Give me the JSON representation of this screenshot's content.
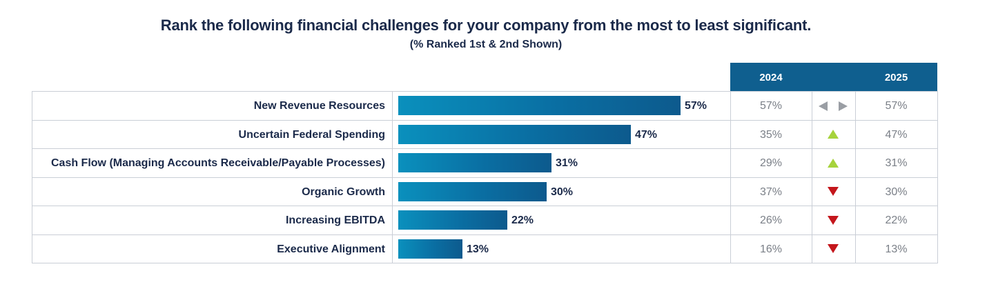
{
  "title": "Rank the following financial challenges for your company from the most to least significant.",
  "subtitle": "(% Ranked 1st & 2nd Shown)",
  "colors": {
    "header": "#0f5f8f",
    "up": "#a6d33c",
    "down": "#c4161c",
    "flat": "#9a9ea4"
  },
  "chart_data": {
    "type": "bar",
    "orientation": "horizontal",
    "title": "Rank the following financial challenges for your company from the most to least significant.",
    "subtitle": "(% Ranked 1st & 2nd Shown)",
    "columns": [
      "2024",
      "2025"
    ],
    "categories": [
      "New Revenue Resources",
      "Uncertain Federal Spending",
      "Cash Flow (Managing Accounts Receivable/Payable Processes)",
      "Organic Growth",
      "Increasing EBITDA",
      "Executive Alignment"
    ],
    "values": [
      57,
      47,
      31,
      30,
      22,
      13
    ],
    "value_labels": [
      "57%",
      "47%",
      "31%",
      "30%",
      "22%",
      "13%"
    ],
    "values_2024": [
      "57%",
      "35%",
      "29%",
      "37%",
      "26%",
      "16%"
    ],
    "values_2025": [
      "57%",
      "47%",
      "31%",
      "30%",
      "22%",
      "13%"
    ],
    "trend": [
      "flat",
      "up",
      "up",
      "down",
      "down",
      "down"
    ]
  }
}
